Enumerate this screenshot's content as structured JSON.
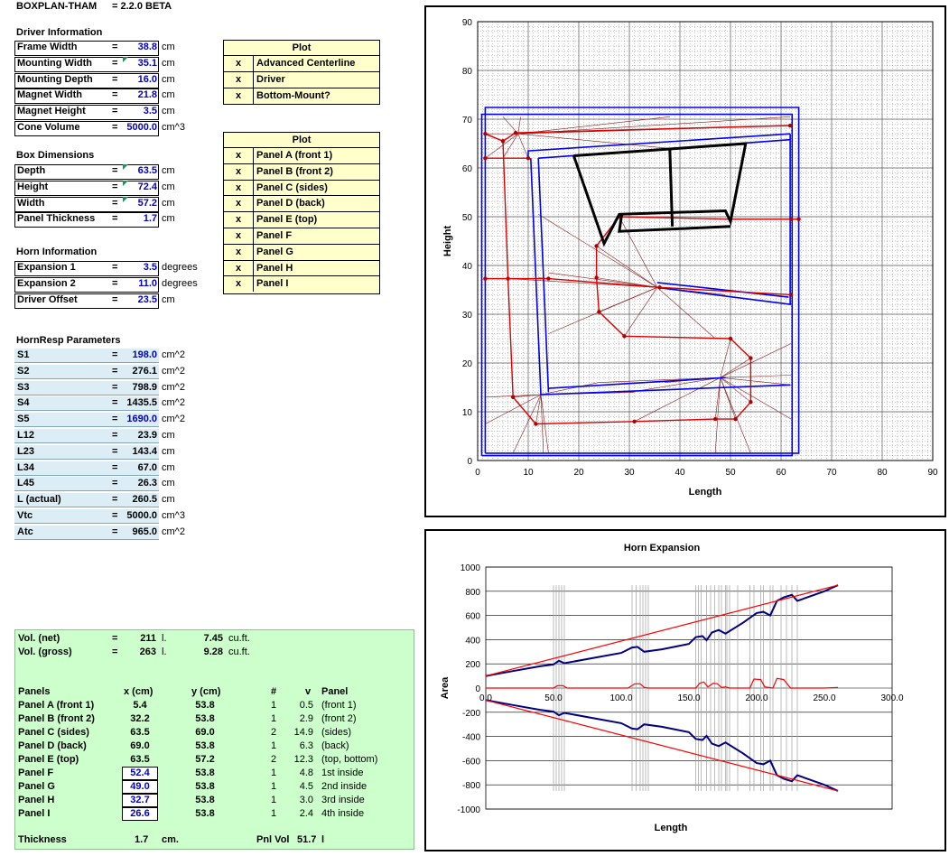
{
  "header": {
    "app": "BOXPLAN-THAM",
    "version": "= 2.2.0 BETA"
  },
  "driver": {
    "section": "Driver Information",
    "rows": [
      {
        "label": "Frame Width",
        "eq": "=",
        "value": "38.8",
        "unit": "cm"
      },
      {
        "label": "Mounting Width",
        "eq": "=",
        "value": "35.1",
        "unit": "cm"
      },
      {
        "label": "Mounting Depth",
        "eq": "=",
        "value": "16.0",
        "unit": "cm"
      },
      {
        "label": "Magnet Width",
        "eq": "=",
        "value": "21.8",
        "unit": "cm"
      },
      {
        "label": "Magnet Height",
        "eq": "=",
        "value": "3.5",
        "unit": "cm"
      },
      {
        "label": "Cone Volume",
        "eq": "=",
        "value": "5000.0",
        "unit": "cm^3"
      }
    ]
  },
  "box": {
    "section": "Box Dimensions",
    "rows": [
      {
        "label": "Depth",
        "eq": "=",
        "value": "63.5",
        "unit": "cm"
      },
      {
        "label": "Height",
        "eq": "=",
        "value": "72.4",
        "unit": "cm"
      },
      {
        "label": "Width",
        "eq": "=",
        "value": "57.2",
        "unit": "cm"
      },
      {
        "label": "Panel Thickness",
        "eq": "=",
        "value": "1.7",
        "unit": "cm"
      }
    ]
  },
  "horn": {
    "section": "Horn Information",
    "rows": [
      {
        "label": "Expansion 1",
        "eq": "=",
        "value": "3.5",
        "unit": "degrees"
      },
      {
        "label": "Expansion 2",
        "eq": "=",
        "value": "11.0",
        "unit": "degrees"
      },
      {
        "label": "Driver Offset",
        "eq": "=",
        "value": "23.5",
        "unit": "cm"
      }
    ]
  },
  "hornresp": {
    "section": "HornResp Parameters",
    "rows": [
      {
        "label": "S1",
        "eq": "=",
        "value": "198.0",
        "unit": "cm^2",
        "blue": true
      },
      {
        "label": "S2",
        "eq": "=",
        "value": "276.1",
        "unit": "cm^2",
        "blue": false
      },
      {
        "label": "S3",
        "eq": "=",
        "value": "798.9",
        "unit": "cm^2",
        "blue": false
      },
      {
        "label": "S4",
        "eq": "=",
        "value": "1435.5",
        "unit": "cm^2",
        "blue": false
      },
      {
        "label": "S5",
        "eq": "=",
        "value": "1690.0",
        "unit": "cm^2",
        "blue": true
      },
      {
        "label": "L12",
        "eq": "=",
        "value": "23.9",
        "unit": "cm",
        "blue": false
      },
      {
        "label": "L23",
        "eq": "=",
        "value": "143.4",
        "unit": "cm",
        "blue": false
      },
      {
        "label": "L34",
        "eq": "=",
        "value": "67.0",
        "unit": "cm",
        "blue": false
      },
      {
        "label": "L45",
        "eq": "=",
        "value": "26.3",
        "unit": "cm",
        "blue": false
      },
      {
        "label": "L (actual)",
        "eq": "=",
        "value": "260.5",
        "unit": "cm",
        "blue": false
      },
      {
        "label": "Vtc",
        "eq": "=",
        "value": "5000.0",
        "unit": "cm^3",
        "blue": false
      },
      {
        "label": "Atc",
        "eq": "=",
        "value": "965.0",
        "unit": "cm^2",
        "blue": false
      }
    ]
  },
  "plot1": {
    "header": "Plot",
    "items": [
      {
        "check": "x",
        "label": "Advanced Centerline"
      },
      {
        "check": "x",
        "label": "Driver"
      },
      {
        "check": "x",
        "label": "Bottom-Mount?"
      }
    ]
  },
  "plot2": {
    "header": "Plot",
    "items": [
      {
        "check": "x",
        "label": "Panel A (front 1)"
      },
      {
        "check": "x",
        "label": "Panel B (front 2)"
      },
      {
        "check": "x",
        "label": "Panel C (sides)"
      },
      {
        "check": "x",
        "label": "Panel D (back)"
      },
      {
        "check": "x",
        "label": "Panel E (top)"
      },
      {
        "check": "x",
        "label": "Panel F"
      },
      {
        "check": "x",
        "label": "Panel G"
      },
      {
        "check": "x",
        "label": "Panel H"
      },
      {
        "check": "x",
        "label": "Panel I"
      }
    ]
  },
  "summary": {
    "vol_net": {
      "label": "Vol. (net)",
      "eq": "=",
      "value": "211",
      "unit": "l.",
      "value2": "7.45",
      "unit2": "cu.ft."
    },
    "vol_gross": {
      "label": "Vol. (gross)",
      "eq": "=",
      "value": "263",
      "unit": "l.",
      "value2": "9.28",
      "unit2": "cu.ft."
    },
    "columns": {
      "name": "Panels",
      "x": "x (cm)",
      "y": "y (cm)",
      "n": "#",
      "v": "v",
      "panel": "Panel"
    },
    "panels": [
      {
        "name": "Panel A (front 1)",
        "x": "5.4",
        "y": "53.8",
        "n": "1",
        "v": "0.5",
        "desc": "(front 1)",
        "input": false
      },
      {
        "name": "Panel B (front 2)",
        "x": "32.2",
        "y": "53.8",
        "n": "1",
        "v": "2.9",
        "desc": "(front 2)",
        "input": false
      },
      {
        "name": "Panel C (sides)",
        "x": "63.5",
        "y": "69.0",
        "n": "2",
        "v": "14.9",
        "desc": "(sides)",
        "input": false
      },
      {
        "name": "Panel D (back)",
        "x": "69.0",
        "y": "53.8",
        "n": "1",
        "v": "6.3",
        "desc": "(back)",
        "input": false
      },
      {
        "name": "Panel E (top)",
        "x": "63.5",
        "y": "57.2",
        "n": "2",
        "v": "12.3",
        "desc": "(top, bottom)",
        "input": false
      },
      {
        "name": "Panel F",
        "x": "52.4",
        "y": "53.8",
        "n": "1",
        "v": "4.8",
        "desc": "1st inside",
        "input": true
      },
      {
        "name": "Panel G",
        "x": "49.0",
        "y": "53.8",
        "n": "1",
        "v": "4.5",
        "desc": "2nd inside",
        "input": true
      },
      {
        "name": "Panel H",
        "x": "32.7",
        "y": "53.8",
        "n": "1",
        "v": "3.0",
        "desc": "3rd inside",
        "input": true
      },
      {
        "name": "Panel I",
        "x": "26.6",
        "y": "53.8",
        "n": "1",
        "v": "2.4",
        "desc": "4th inside",
        "input": true
      }
    ],
    "thickness": {
      "label": "Thickness",
      "value": "1.7",
      "unit": "cm.",
      "pnl_label": "Pnl Vol",
      "pnl_value": "51.7",
      "pnl_unit": "l"
    }
  },
  "chart_data": [
    {
      "type": "line",
      "title": "",
      "xlabel": "Length",
      "ylabel": "Height",
      "xlim": [
        0,
        90
      ],
      "ylim": [
        0,
        90
      ],
      "xticks": [
        "0",
        "10",
        "20",
        "30",
        "40",
        "50",
        "60",
        "70",
        "80",
        "90"
      ],
      "yticks": [
        "0",
        "10",
        "20",
        "30",
        "40",
        "50",
        "60",
        "70",
        "80",
        "90"
      ],
      "grid": true,
      "colors": {
        "box": "#0000ee",
        "centerline": "#dd0000",
        "driver": "#000000",
        "web": "#8b1a1a"
      },
      "series": [
        {
          "role": "box",
          "points": [
            [
              1.5,
              1.5
            ],
            [
              63.5,
              1.5
            ],
            [
              63.5,
              72.4
            ],
            [
              1.5,
              72.4
            ],
            [
              1.5,
              1.5
            ]
          ]
        },
        {
          "role": "box",
          "points": [
            [
              0.8,
              1.0
            ],
            [
              62.2,
              1.0
            ],
            [
              62.2,
              71.0
            ],
            [
              0.8,
              71.0
            ],
            [
              0.8,
              1.0
            ]
          ]
        },
        {
          "role": "box",
          "points": [
            [
              10,
              62
            ],
            [
              10,
              63.5
            ],
            [
              61.8,
              67
            ]
          ]
        },
        {
          "role": "box",
          "points": [
            [
              61.8,
              65.8
            ],
            [
              12,
              62
            ]
          ]
        },
        {
          "role": "box",
          "points": [
            [
              12,
              62
            ],
            [
              14,
              14
            ]
          ]
        },
        {
          "role": "box",
          "points": [
            [
              10.5,
              62
            ],
            [
              12.5,
              13.5
            ]
          ]
        },
        {
          "role": "box",
          "points": [
            [
              12.5,
              13.5
            ],
            [
              61.8,
              15.5
            ]
          ]
        },
        {
          "role": "box",
          "points": [
            [
              14,
              14.8
            ],
            [
              49,
              17
            ]
          ]
        },
        {
          "role": "box",
          "points": [
            [
              35.5,
              35.5
            ],
            [
              62,
              32
            ]
          ]
        },
        {
          "role": "box",
          "points": [
            [
              35.5,
              36.5
            ],
            [
              61.5,
              33.5
            ]
          ]
        },
        {
          "role": "box",
          "points": [
            [
              61.8,
              67
            ],
            [
              61.8,
              32
            ]
          ]
        },
        {
          "role": "centerline",
          "points": [
            [
              1.5,
              67
            ],
            [
              5,
              65.5
            ],
            [
              7.5,
              67.2
            ],
            [
              61.8,
              68.7
            ]
          ]
        },
        {
          "role": "centerline",
          "points": [
            [
              1.5,
              62
            ],
            [
              10,
              62
            ]
          ]
        },
        {
          "role": "centerline",
          "points": [
            [
              5,
              65.5
            ],
            [
              6,
              37.3
            ],
            [
              7,
              13
            ],
            [
              11.5,
              7.5
            ],
            [
              31,
              8
            ],
            [
              47,
              8.5
            ],
            [
              51,
              8.5
            ],
            [
              54,
              12
            ],
            [
              54,
              21
            ],
            [
              50,
              25
            ],
            [
              29,
              25.5
            ],
            [
              24,
              30.5
            ],
            [
              23.5,
              37.5
            ],
            [
              23.5,
              44
            ],
            [
              28,
              50
            ],
            [
              50,
              49.5
            ],
            [
              62,
              49.5
            ],
            [
              63.5,
              49.5
            ]
          ]
        },
        {
          "role": "centerline",
          "points": [
            [
              1.5,
              37.3
            ],
            [
              14,
              37.3
            ],
            [
              36,
              35.5
            ],
            [
              62,
              34
            ]
          ]
        },
        {
          "role": "driver",
          "points": [
            [
              19,
              62.5
            ],
            [
              25,
              44.5
            ],
            [
              28,
              50.5
            ],
            [
              49,
              51.2
            ],
            [
              50,
              49
            ],
            [
              53,
              65
            ],
            [
              19,
              62.5
            ]
          ]
        },
        {
          "role": "driver",
          "points": [
            [
              28.5,
              50.5
            ],
            [
              28,
              47
            ],
            [
              50,
              48
            ]
          ]
        },
        {
          "role": "driver",
          "points": [
            [
              38,
              64
            ],
            [
              38.5,
              48
            ]
          ]
        }
      ]
    },
    {
      "type": "line",
      "title": "Horn Expansion",
      "xlabel": "Length",
      "ylabel": "Area",
      "xlim": [
        0,
        300
      ],
      "ylim": [
        -1000,
        1000
      ],
      "xticks": [
        "0.0",
        "50.0",
        "100.0",
        "150.0",
        "200.0",
        "250.0",
        "300.0"
      ],
      "yticks": [
        "-1000",
        "-800",
        "-600",
        "-400",
        "-200",
        "0",
        "200",
        "400",
        "600",
        "800",
        "1000"
      ],
      "grid": true,
      "colors": {
        "actual": "#000080",
        "ideal": "#ff0000",
        "marker": "#aaaaaa"
      },
      "markers_x": [
        50,
        52,
        54,
        56,
        58,
        108,
        111,
        114,
        116,
        118,
        120,
        155,
        157,
        159,
        163,
        166,
        169,
        172,
        174,
        177,
        178,
        180,
        186,
        195,
        198,
        203,
        205,
        210,
        212,
        218,
        222,
        226,
        230
      ],
      "series": [
        {
          "name": "",
          "role": "actual",
          "x": [
            0,
            20,
            40,
            50,
            54,
            58,
            80,
            100,
            108,
            112,
            117,
            130,
            150,
            155,
            160,
            163,
            167,
            172,
            177,
            190,
            200,
            205,
            210,
            215,
            220,
            226,
            230,
            250,
            260
          ],
          "y": [
            100,
            140,
            180,
            195,
            225,
            205,
            250,
            290,
            335,
            340,
            300,
            320,
            365,
            420,
            430,
            395,
            460,
            480,
            450,
            540,
            620,
            630,
            600,
            720,
            750,
            770,
            720,
            800,
            850
          ]
        },
        {
          "name": "",
          "role": "actual",
          "x": [
            0,
            20,
            40,
            50,
            54,
            58,
            80,
            100,
            108,
            112,
            117,
            130,
            150,
            155,
            160,
            163,
            167,
            172,
            177,
            190,
            200,
            205,
            210,
            215,
            220,
            226,
            230,
            250,
            260
          ],
          "y": [
            -100,
            -140,
            -180,
            -195,
            -225,
            -205,
            -250,
            -290,
            -335,
            -340,
            -300,
            -320,
            -365,
            -420,
            -430,
            -395,
            -460,
            -480,
            -450,
            -540,
            -620,
            -630,
            -600,
            -720,
            -750,
            -770,
            -720,
            -800,
            -850
          ]
        },
        {
          "name": "",
          "role": "ideal",
          "x": [
            0,
            260
          ],
          "y": [
            100,
            850
          ]
        },
        {
          "name": "",
          "role": "ideal",
          "x": [
            0,
            260
          ],
          "y": [
            -100,
            -850
          ]
        },
        {
          "name": "",
          "role": "ideal",
          "x": [
            0,
            50,
            53,
            57,
            60,
            105,
            110,
            114,
            117,
            120,
            155,
            158,
            161,
            164,
            168,
            171,
            174,
            177,
            180,
            195,
            198,
            203,
            206,
            212,
            215,
            220,
            225,
            250,
            260
          ],
          "y": [
            0,
            0,
            20,
            20,
            0,
            0,
            35,
            35,
            5,
            0,
            0,
            40,
            50,
            10,
            40,
            35,
            5,
            10,
            0,
            0,
            75,
            70,
            10,
            0,
            80,
            70,
            0,
            0,
            5
          ]
        }
      ]
    }
  ]
}
